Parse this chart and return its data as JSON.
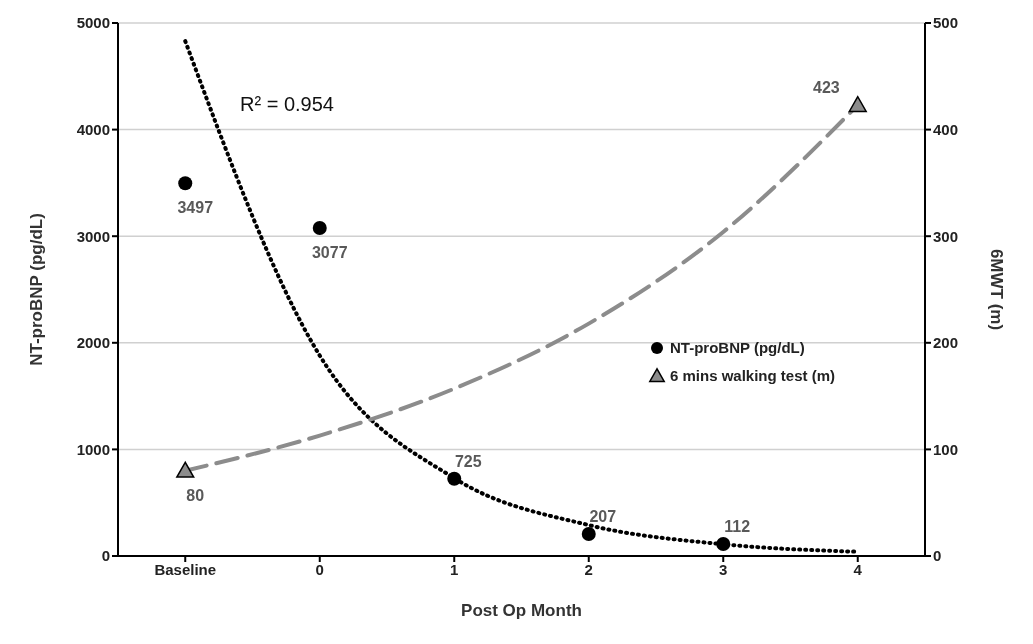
{
  "chart_data": {
    "type": "scatter",
    "xlabel": "Post Op Month",
    "ylabel": "NT-proBNP (pg/dL)",
    "y2label": "6MWT (m)",
    "categories": [
      "Baseline",
      "0",
      "1",
      "2",
      "3",
      "4"
    ],
    "ylim": [
      0,
      5000
    ],
    "yticks": [
      0,
      1000,
      2000,
      3000,
      4000,
      5000
    ],
    "y2lim": [
      0,
      500
    ],
    "y2ticks": [
      0,
      100,
      200,
      300,
      400,
      500
    ],
    "grid": "y",
    "legend": "right",
    "annotations": [
      "R² = 0.954"
    ],
    "series": [
      {
        "name": "NT-proBNP (pg/dL)",
        "color": "#000000",
        "marker": "circle",
        "values": [
          3497,
          3077,
          725,
          207,
          112,
          null
        ],
        "value_labels": [
          "3497",
          "3077",
          "725",
          "207",
          "112",
          null
        ]
      },
      {
        "name": "6 mins walking test (m)",
        "type": "scatter",
        "axis": "y2",
        "color": "#8c8c8c",
        "marker": "triangle",
        "values": [
          80,
          null,
          null,
          null,
          null,
          423
        ],
        "value_labels": [
          "80",
          null,
          null,
          null,
          null,
          "423"
        ]
      },
      {
        "type": "line",
        "color": "#000000",
        "line_style": "dotted",
        "marker": "none",
        "values": [
          4830,
          1880,
          730,
          290,
          110,
          40
        ]
      },
      {
        "type": "line",
        "axis": "y2",
        "color": "#8c8c8c",
        "line_style": "dashed",
        "marker": "none",
        "values": [
          80,
          113,
          157,
          218,
          304,
          423
        ]
      }
    ]
  }
}
